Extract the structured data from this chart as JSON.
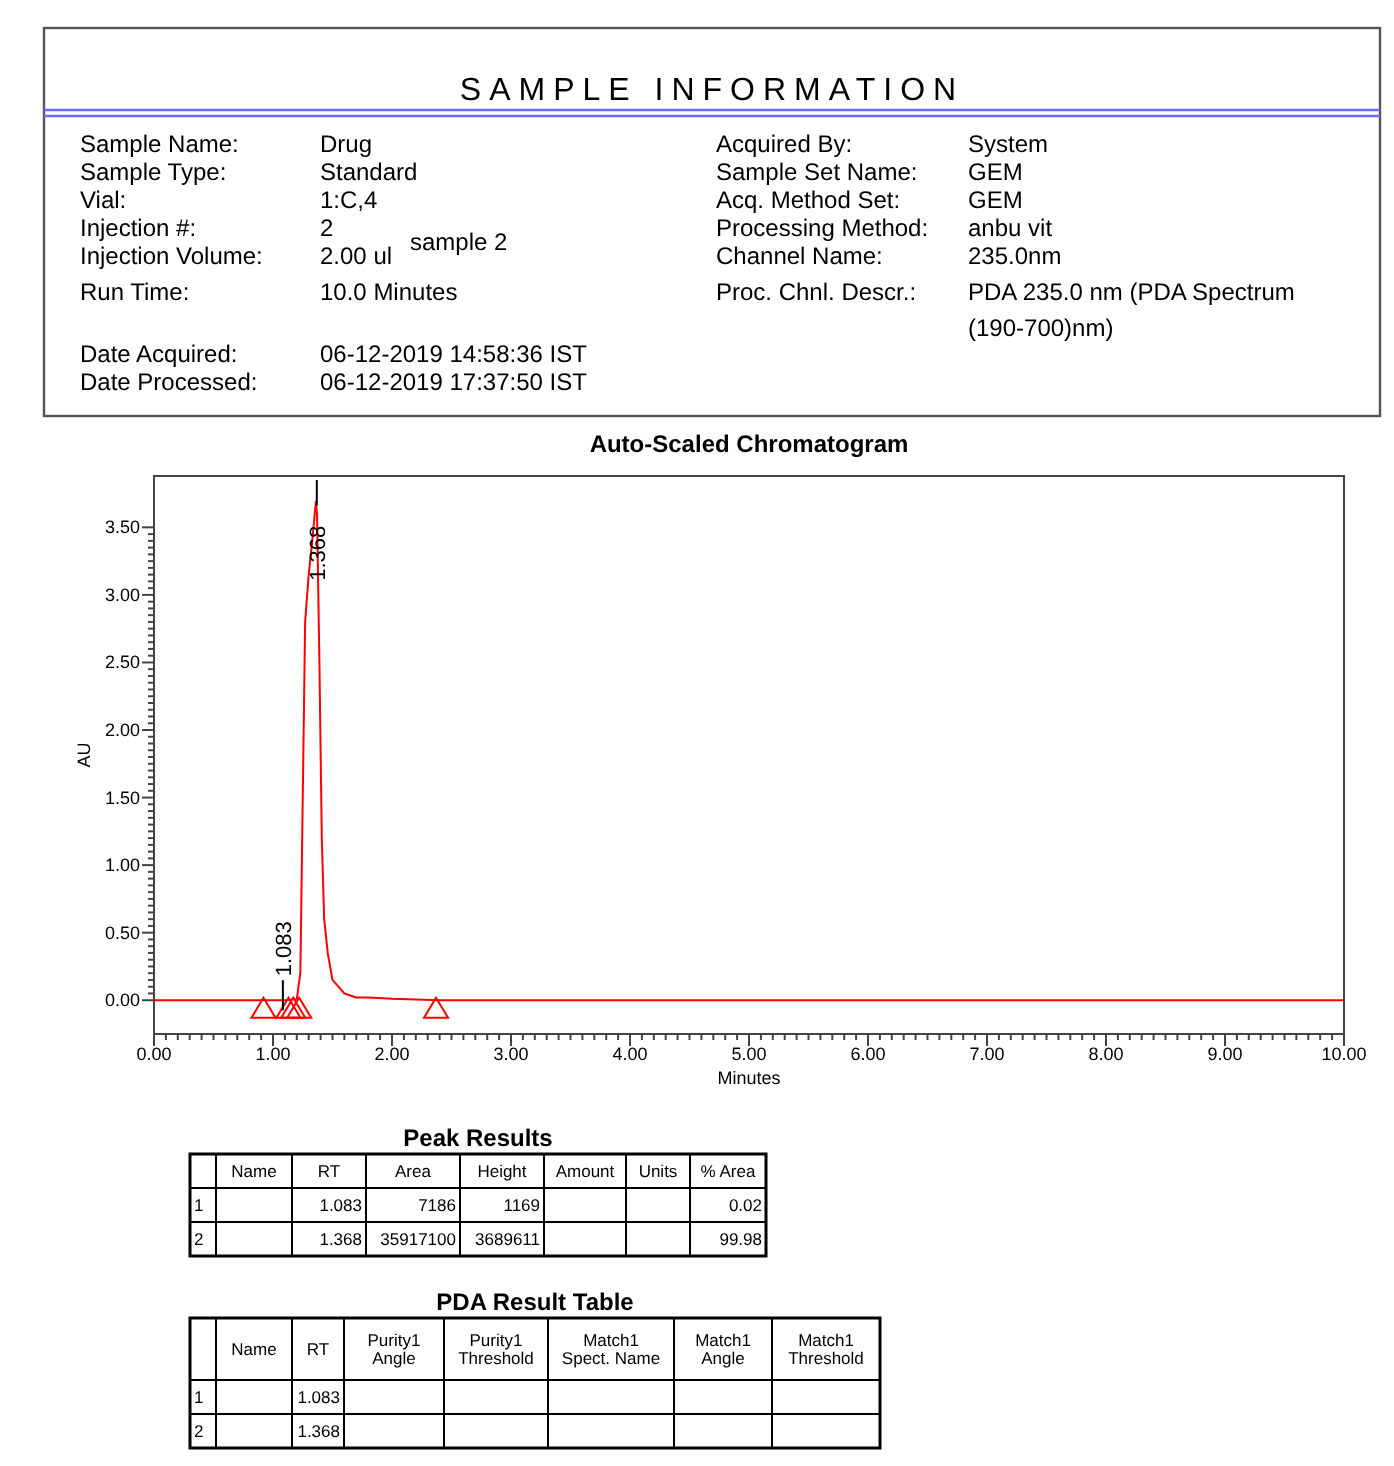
{
  "chart_data": [
    {
      "type": "other",
      "title": "SAMPLE INFORMATION",
      "annotations": [
        "Sample Name:",
        "Drug",
        "Sample Type:",
        "Standard",
        "Vial:",
        "1:C,4",
        "Injection #:",
        "2",
        "Injection Volume:",
        "2.00 ul",
        "Run Time:",
        "10.0 Minutes",
        "Date Acquired:",
        "06-12-2019 14:58:36 IST",
        "Date Processed:",
        "06-12-2019 17:37:50 IST",
        "sample 2",
        "Acquired By:",
        "System",
        "Sample Set Name:",
        "GEM",
        "Acq. Method Set:",
        "GEM",
        "Processing Method:",
        "anbu vit",
        "Channel Name:",
        "235.0nm",
        "Proc. Chnl. Descr.:",
        "PDA 235.0 nm (PDA Spectrum",
        "(190-700)nm)"
      ]
    },
    {
      "type": "line",
      "title": "Auto-Scaled Chromatogram",
      "xlabel": "Minutes",
      "ylabel": "AU",
      "xlim": [
        0,
        10
      ],
      "ylim": [
        -0.25,
        3.88
      ],
      "xticks": [
        {
          "value": 0,
          "label": "0.00"
        },
        {
          "value": 1,
          "label": "1.00"
        },
        {
          "value": 2,
          "label": "2.00"
        },
        {
          "value": 3,
          "label": "3.00"
        },
        {
          "value": 4,
          "label": "4.00"
        },
        {
          "value": 5,
          "label": "5.00"
        },
        {
          "value": 6,
          "label": "6.00"
        },
        {
          "value": 7,
          "label": "7.00"
        },
        {
          "value": 8,
          "label": "8.00"
        },
        {
          "value": 9,
          "label": "9.00"
        },
        {
          "value": 10,
          "label": "10.00"
        }
      ],
      "yticks": [
        {
          "value": 0,
          "label": "0.00"
        },
        {
          "value": 0.5,
          "label": "0.50"
        },
        {
          "value": 1,
          "label": "1.00"
        },
        {
          "value": 1.5,
          "label": "1.50"
        },
        {
          "value": 2,
          "label": "2.00"
        },
        {
          "value": 2.5,
          "label": "2.50"
        },
        {
          "value": 3,
          "label": "3.00"
        },
        {
          "value": 3.5,
          "label": "3.50"
        }
      ],
      "series": [
        {
          "color": "#ff0000",
          "x": [
            0,
            0.9,
            1.1,
            1.2,
            1.23,
            1.25,
            1.27,
            1.3,
            1.33,
            1.36,
            1.37,
            1.39,
            1.41,
            1.43,
            1.46,
            1.5,
            1.6,
            1.7,
            1.8,
            2.0,
            2.4,
            3,
            10
          ],
          "values": [
            0,
            0,
            0,
            0.01,
            0.2,
            1.5,
            2.8,
            3.15,
            3.4,
            3.69,
            3.6,
            2.5,
            1.2,
            0.6,
            0.35,
            0.15,
            0.05,
            0.02,
            0.02,
            0.01,
            0,
            0,
            0
          ]
        },
        {
          "type": "scatter",
          "marker": "triangle",
          "color": "#ff0000",
          "x": [
            0.92,
            1.13,
            1.17,
            1.22,
            2.37
          ],
          "values": [
            -0.07,
            -0.07,
            -0.07,
            -0.07,
            -0.07
          ]
        }
      ],
      "annotations": [
        {
          "text": "1.083",
          "x": 1.083,
          "y": 0.0
        },
        {
          "text": "1.368",
          "x": 1.368,
          "y": 3.69
        }
      ]
    },
    {
      "type": "other",
      "title": "Peak Results",
      "annotations": [
        "Name",
        "RT",
        "Area",
        "Height",
        "Amount",
        "Units",
        "% Area",
        "1",
        "1.083",
        "7186",
        "1169",
        "0.02",
        "2",
        "1.368",
        "35917100",
        "3689611",
        "99.98"
      ]
    },
    {
      "type": "other",
      "title": "PDA Result Table",
      "annotations": [
        "Name",
        "RT",
        "Purity1\nAngle",
        "Purity1\nThreshold",
        "Match1\nSpect. Name",
        "Match1\nAngle",
        "Match1\nThreshold",
        "1",
        "1.083",
        "2",
        "1.368"
      ]
    }
  ]
}
